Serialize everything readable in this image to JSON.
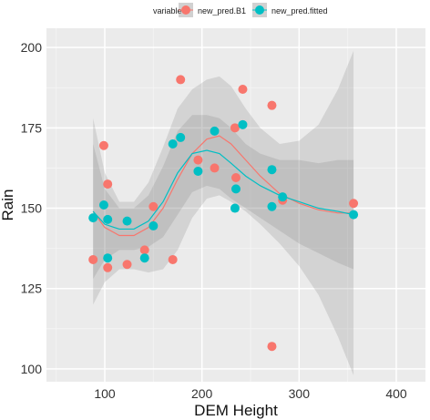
{
  "chart_data": {
    "type": "scatter",
    "title": "",
    "xlabel": "DEM Height",
    "ylabel": "Rain",
    "xlim": [
      40,
      430
    ],
    "ylim": [
      96,
      206
    ],
    "x_ticks": [
      100,
      200,
      300,
      400
    ],
    "y_ticks": [
      100,
      125,
      150,
      175,
      200
    ],
    "grid": true,
    "legend": {
      "title": "variable",
      "position": "top",
      "entries": [
        "new_pred.B1",
        "new_pred.fitted"
      ]
    },
    "series": [
      {
        "name": "new_pred.B1",
        "color": "#F8766D",
        "points": [
          {
            "x": 88,
            "y": 134
          },
          {
            "x": 99,
            "y": 169.5
          },
          {
            "x": 103,
            "y": 157.5
          },
          {
            "x": 103,
            "y": 131.5
          },
          {
            "x": 123,
            "y": 132.5
          },
          {
            "x": 141,
            "y": 137
          },
          {
            "x": 150,
            "y": 150.5
          },
          {
            "x": 170,
            "y": 134
          },
          {
            "x": 178,
            "y": 190
          },
          {
            "x": 196,
            "y": 165
          },
          {
            "x": 213,
            "y": 162.5
          },
          {
            "x": 234,
            "y": 175
          },
          {
            "x": 235,
            "y": 159.5
          },
          {
            "x": 242,
            "y": 187
          },
          {
            "x": 272,
            "y": 182
          },
          {
            "x": 272,
            "y": 107
          },
          {
            "x": 283,
            "y": 152.5
          },
          {
            "x": 356,
            "y": 151.5
          }
        ]
      },
      {
        "name": "new_pred.fitted",
        "color": "#00BFC4",
        "points": [
          {
            "x": 88,
            "y": 147
          },
          {
            "x": 99,
            "y": 151
          },
          {
            "x": 103,
            "y": 146.5
          },
          {
            "x": 103,
            "y": 134.5
          },
          {
            "x": 123,
            "y": 146
          },
          {
            "x": 141,
            "y": 134.5
          },
          {
            "x": 150,
            "y": 144.5
          },
          {
            "x": 170,
            "y": 170
          },
          {
            "x": 178,
            "y": 172
          },
          {
            "x": 196,
            "y": 161.5
          },
          {
            "x": 213,
            "y": 174
          },
          {
            "x": 234,
            "y": 150
          },
          {
            "x": 235,
            "y": 156
          },
          {
            "x": 242,
            "y": 176
          },
          {
            "x": 272,
            "y": 162
          },
          {
            "x": 272,
            "y": 150.5
          },
          {
            "x": 283,
            "y": 153.5
          },
          {
            "x": 356,
            "y": 148
          }
        ]
      }
    ],
    "smooth": [
      {
        "series": "new_pred.B1",
        "x": [
          88,
          100,
          115,
          130,
          145,
          160,
          175,
          190,
          205,
          218,
          230,
          245,
          260,
          280,
          300,
          320,
          340,
          356
        ],
        "y": [
          149,
          144,
          141.5,
          141.5,
          144,
          150,
          159,
          167,
          171.5,
          172.5,
          170,
          165,
          160,
          154.5,
          151.5,
          149.5,
          148.5,
          148.5
        ],
        "lower": [
          120,
          127,
          131,
          131,
          130,
          131,
          137,
          147,
          153,
          154,
          152,
          149,
          145,
          139,
          132,
          123,
          110,
          98
        ],
        "upper": [
          178,
          161,
          152,
          152,
          158,
          169,
          181,
          187,
          190,
          191,
          188,
          181,
          175,
          170,
          171,
          176,
          187,
          199
        ]
      },
      {
        "series": "new_pred.fitted",
        "x": [
          88,
          100,
          115,
          130,
          145,
          160,
          175,
          190,
          205,
          218,
          230,
          245,
          260,
          280,
          300,
          320,
          340,
          356
        ],
        "y": [
          149,
          145,
          143.5,
          143.5,
          146,
          152,
          161,
          167,
          168,
          167,
          164,
          160,
          157,
          154,
          152,
          150,
          149,
          148
        ],
        "lower": [
          128,
          134,
          137,
          137,
          138,
          141,
          148,
          155,
          157,
          156,
          153,
          150,
          147,
          143,
          139,
          136,
          133,
          131
        ],
        "upper": [
          170,
          156,
          150,
          150,
          154,
          163,
          174,
          179,
          179,
          178,
          175,
          170,
          167,
          165,
          165,
          164,
          165,
          165
        ]
      }
    ],
    "colors": {
      "panel_bg": "#EBEBEB",
      "grid_major": "#FFFFFF",
      "grid_minor": "#F5F5F5",
      "ribbon": "#7F7F7F",
      "b1_line": "#F8766D",
      "fitted_line": "#00BFC4"
    }
  }
}
